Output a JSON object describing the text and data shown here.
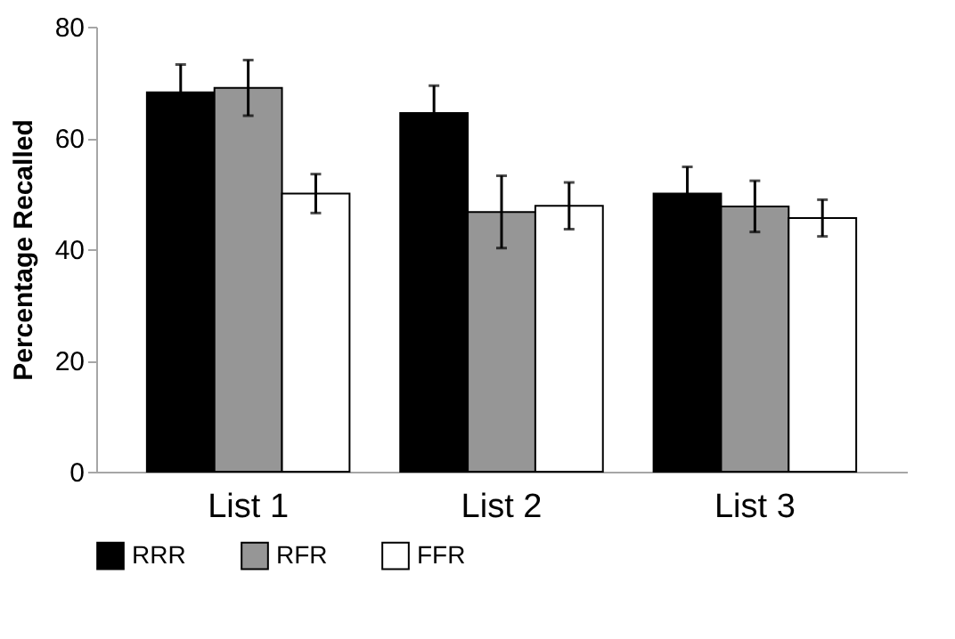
{
  "chart_data": {
    "type": "bar",
    "ylabel": "Percentage Recalled",
    "categories": [
      "List 1",
      "List 2",
      "List 3"
    ],
    "series": [
      {
        "name": "RRR",
        "color": "#000000",
        "values": [
          68.2,
          64.5,
          50.0
        ],
        "errors": [
          5.0,
          4.9,
          4.8
        ]
      },
      {
        "name": "RFR",
        "color": "#969696",
        "values": [
          69.0,
          46.7,
          47.7
        ],
        "errors": [
          5.0,
          6.5,
          4.6
        ]
      },
      {
        "name": "FFR",
        "color": "#ffffff",
        "values": [
          50.0,
          47.8,
          45.6
        ],
        "errors": [
          3.5,
          4.2,
          3.3
        ]
      }
    ],
    "ylim": [
      0,
      80
    ],
    "yticks": [
      0,
      20,
      40,
      60,
      80
    ],
    "grid": false,
    "legend": "bottom"
  }
}
